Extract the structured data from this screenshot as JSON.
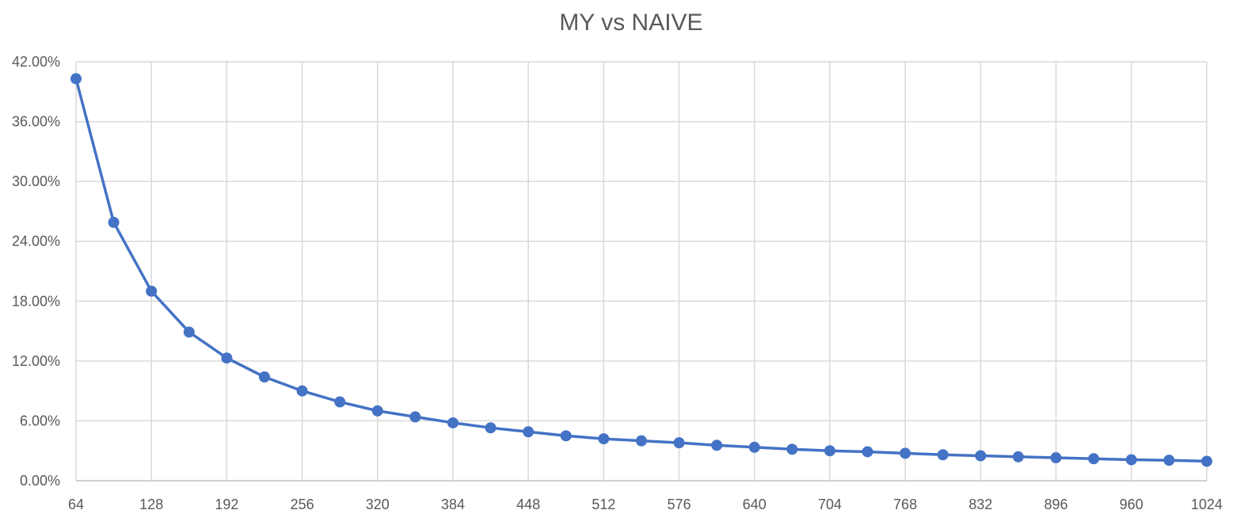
{
  "chart_data": {
    "type": "line",
    "title": "MY vs NAIVE",
    "xlabel": "",
    "ylabel": "",
    "x_tick_labels": [
      "64",
      "128",
      "192",
      "256",
      "320",
      "384",
      "448",
      "512",
      "576",
      "640",
      "704",
      "768",
      "832",
      "896",
      "960",
      "1024"
    ],
    "y_tick_labels": [
      "0.00%",
      "6.00%",
      "12.00%",
      "18.00%",
      "24.00%",
      "30.00%",
      "36.00%",
      "42.00%"
    ],
    "xlim": [
      64,
      1024
    ],
    "ylim": [
      0,
      42
    ],
    "grid": true,
    "legend": "none",
    "series": [
      {
        "color": "#4472c4",
        "x": [
          64,
          96,
          128,
          160,
          192,
          224,
          256,
          288,
          320,
          352,
          384,
          416,
          448,
          480,
          512,
          544,
          576,
          608,
          640,
          672,
          704,
          736,
          768,
          800,
          832,
          864,
          896,
          928,
          960,
          992,
          1024
        ],
        "values": [
          40.3,
          25.9,
          19.0,
          14.9,
          12.3,
          10.4,
          9.0,
          7.9,
          7.0,
          6.4,
          5.8,
          5.3,
          4.9,
          4.5,
          4.2,
          4.0,
          3.8,
          3.55,
          3.35,
          3.15,
          3.0,
          2.9,
          2.75,
          2.6,
          2.5,
          2.4,
          2.3,
          2.2,
          2.1,
          2.05,
          1.95
        ]
      }
    ]
  }
}
